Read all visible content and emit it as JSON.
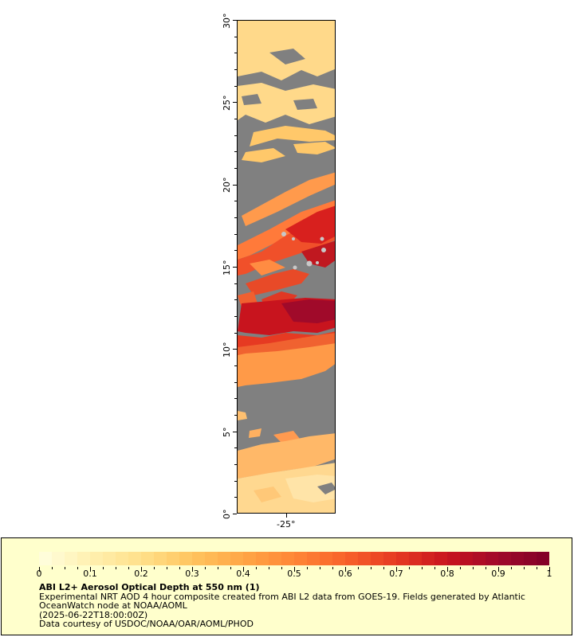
{
  "map": {
    "latitude_labels": [
      "0°",
      "5°",
      "10°",
      "15°",
      "20°",
      "25°",
      "30°"
    ],
    "longitude_labels": [
      "-25°"
    ],
    "lat_range": [
      0,
      30
    ],
    "no_data_color": "#808080",
    "islands_color": "#c8c8c8"
  },
  "legend": {
    "title": "ABI L2+ Aerosol Optical Depth at 550 nm (1)",
    "description": "Experimental NRT AOD 4 hour composite created from ABI L2 data from GOES-19. Fields generated by Atlantic OceanWatch node at NOAA/AOML",
    "timestamp": "(2025-06-22T18:00:00Z)",
    "credit": "Data courtesy of USDOC/NOAA/OAR/AOML/PHOD",
    "colorbar_labels": [
      "0",
      "0.1",
      "0.2",
      "0.3",
      "0.4",
      "0.5",
      "0.6",
      "0.7",
      "0.8",
      "0.9",
      "1"
    ],
    "colorbar_range": [
      0,
      1
    ],
    "colorbar_colors": [
      "#ffffe0",
      "#fff0b0",
      "#ffe08a",
      "#ffc45e",
      "#ffa646",
      "#ff8636",
      "#f8622a",
      "#e63a22",
      "#c8141e",
      "#a00a2a",
      "#800026"
    ]
  }
}
